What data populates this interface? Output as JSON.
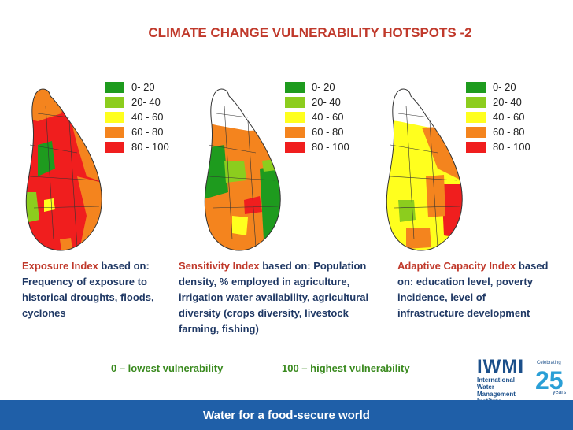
{
  "title": "CLIMATE CHANGE VULNERABILITY HOTSPOTS -2",
  "legend": [
    {
      "label": "0- 20",
      "color": "#1e9b1e"
    },
    {
      "label": "20- 40",
      "color": "#8ccd1e"
    },
    {
      "label": "40 - 60",
      "color": "#ffff1e"
    },
    {
      "label": "60 - 80",
      "color": "#f4841e"
    },
    {
      "label": "80 - 100",
      "color": "#f01e1e"
    }
  ],
  "maps": [
    {
      "name": "exposure",
      "description_highlight": "Exposure Index",
      "description_rest": " based on: Frequency of exposure to historical droughts, floods, cyclones"
    },
    {
      "name": "sensitivity",
      "description_highlight": "Sensitivity Index",
      "description_rest": " based on: Population density, % employed in agriculture, irrigation water availability, agricultural diversity (crops diversity, livestock farming, fishing)"
    },
    {
      "name": "adaptive",
      "description_highlight": "Adaptive Capacity Index",
      "description_rest": " based on: education level, poverty incidence, level of infrastructure development"
    }
  ],
  "scale_low": "0 – lowest vulnerability",
  "scale_high": "100 – highest vulnerability",
  "logo": {
    "big": "IWMI",
    "small": "International Water Management Institute",
    "anniv_top": "Celebrating",
    "anniv_number": "25",
    "anniv_bottom": "years"
  },
  "footer": "Water for a food-secure world"
}
